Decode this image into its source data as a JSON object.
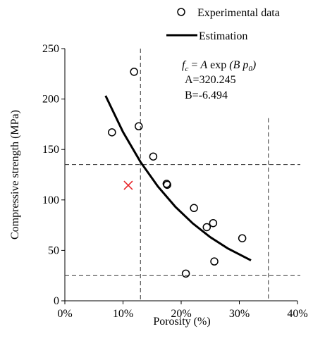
{
  "chart_data": {
    "type": "scatter",
    "x_label": "Porosity (%)",
    "y_label": "Compressive strength  (MPa)",
    "xlim": [
      0,
      40
    ],
    "ylim": [
      0,
      250
    ],
    "xticks": [
      {
        "value": 0,
        "label": "0%"
      },
      {
        "value": 10,
        "label": "10%"
      },
      {
        "value": 20,
        "label": "20%"
      },
      {
        "value": 30,
        "label": "30%"
      },
      {
        "value": 40,
        "label": "40%"
      }
    ],
    "yticks": [
      0,
      50,
      100,
      150,
      200,
      250
    ],
    "series": [
      {
        "name": "Experimental data",
        "kind": "marker",
        "color": "#000000",
        "x": [
          8.1,
          11.9,
          12.7,
          15.2,
          17.5,
          17.6,
          22.2,
          24.4,
          25.5,
          25.7,
          20.8,
          30.5
        ],
        "values": [
          167,
          227,
          173,
          143,
          116,
          115,
          92,
          73,
          77,
          39,
          27,
          62
        ]
      },
      {
        "name": "Estimation",
        "kind": "line",
        "color": "#000000",
        "x": [
          7,
          10,
          13,
          16,
          19,
          22,
          25,
          28,
          32
        ],
        "values": [
          203.3,
          167.3,
          137.7,
          113.3,
          93.2,
          76.7,
          63.1,
          52.0,
          40.1
        ]
      }
    ],
    "highlight": {
      "x": 10.9,
      "value": 114.5,
      "color": "#e8262a"
    },
    "hlines": [
      135,
      25
    ],
    "vlines": [
      {
        "x": 13
      },
      {
        "x": 35,
        "ymax": 181
      }
    ],
    "equation_parts": [
      "f",
      "c",
      " = ",
      "A",
      " exp ",
      "(B p",
      "0",
      ")"
    ],
    "annotations": [
      "A=320.245",
      "B=-6.494"
    ]
  }
}
